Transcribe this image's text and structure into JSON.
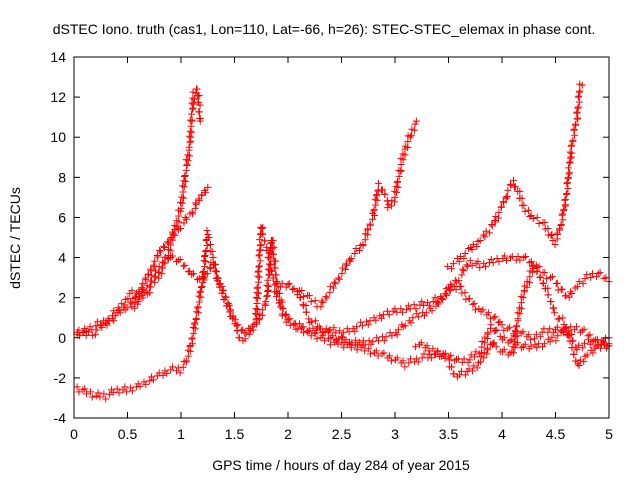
{
  "chart_data": {
    "type": "scatter",
    "title": "dSTEC Iono. truth (cas1, Lon=110, Lat=-66, h=26): STEC-STEC_elemax in phase cont.",
    "xlabel": "GPS time / hours of day 284 of year 2015",
    "ylabel": "dSTEC  / TECUs",
    "xlim": [
      0,
      5
    ],
    "ylim": [
      -4,
      14
    ],
    "xticks": [
      0,
      0.5,
      1,
      1.5,
      2,
      2.5,
      3,
      3.5,
      4,
      4.5,
      5
    ],
    "xtick_labels": [
      "0",
      "0.5",
      "1",
      "1.5",
      "2",
      "2.5",
      "3",
      "3.5",
      "4",
      "4.5",
      "5"
    ],
    "yticks": [
      -4,
      -2,
      0,
      2,
      4,
      6,
      8,
      10,
      12,
      14
    ],
    "ytick_labels": [
      "-4",
      "-2",
      "0",
      "2",
      "4",
      "6",
      "8",
      "10",
      "12",
      "14"
    ],
    "grid": false,
    "marker": "+",
    "marker_color": "#ff0000",
    "series": [
      {
        "points": [
          [
            0.0,
            0.1
          ],
          [
            0.15,
            0.5
          ],
          [
            0.3,
            0.8
          ],
          [
            0.45,
            1.6
          ],
          [
            0.5,
            2.0
          ],
          [
            0.55,
            2.2
          ],
          [
            0.6,
            1.8
          ],
          [
            0.7,
            2.4
          ],
          [
            0.8,
            3.2
          ],
          [
            0.88,
            4.2
          ],
          [
            0.95,
            5.5
          ],
          [
            1.0,
            6.5
          ],
          [
            1.05,
            8.5
          ],
          [
            1.08,
            9.5
          ],
          [
            1.1,
            11.0
          ],
          [
            1.12,
            12.2
          ],
          [
            1.15,
            12.5
          ],
          [
            1.17,
            11.5
          ],
          [
            1.18,
            10.8
          ]
        ]
      },
      {
        "points": [
          [
            0.0,
            0.1
          ],
          [
            0.2,
            0.3
          ],
          [
            0.35,
            0.9
          ],
          [
            0.5,
            1.6
          ],
          [
            0.6,
            2.2
          ],
          [
            0.7,
            3.2
          ],
          [
            0.8,
            4.2
          ],
          [
            0.9,
            5.0
          ],
          [
            1.0,
            5.6
          ],
          [
            1.1,
            6.2
          ],
          [
            1.2,
            7.2
          ],
          [
            1.25,
            7.5
          ]
        ]
      },
      {
        "points": [
          [
            0.55,
            1.4
          ],
          [
            0.6,
            1.9
          ],
          [
            0.7,
            2.7
          ],
          [
            0.8,
            3.5
          ],
          [
            0.9,
            4.1
          ],
          [
            1.0,
            3.8
          ],
          [
            1.1,
            3.2
          ],
          [
            1.2,
            2.8
          ],
          [
            1.25,
            3.2
          ],
          [
            1.3,
            3.8
          ],
          [
            1.35,
            2.8
          ],
          [
            1.4,
            2.0
          ],
          [
            1.5,
            0.8
          ],
          [
            1.6,
            0.3
          ],
          [
            1.7,
            0.6
          ],
          [
            1.8,
            1.8
          ],
          [
            1.85,
            5.0
          ],
          [
            1.9,
            2.5
          ],
          [
            1.95,
            1.2
          ],
          [
            2.0,
            0.8
          ],
          [
            2.1,
            0.5
          ],
          [
            2.2,
            0.2
          ],
          [
            2.3,
            0.0
          ],
          [
            2.4,
            -0.2
          ],
          [
            2.5,
            -0.3
          ],
          [
            2.6,
            -0.4
          ],
          [
            2.7,
            -0.5
          ],
          [
            2.8,
            -0.7
          ],
          [
            2.9,
            -0.9
          ],
          [
            3.0,
            -1.1
          ],
          [
            3.1,
            -1.3
          ],
          [
            3.2,
            -1.1
          ],
          [
            3.3,
            -0.9
          ],
          [
            3.4,
            -0.8
          ],
          [
            3.5,
            -0.9
          ],
          [
            3.6,
            -1.2
          ],
          [
            3.7,
            -1.1
          ],
          [
            3.8,
            -0.6
          ],
          [
            3.9,
            0.6
          ],
          [
            4.0,
            0.0
          ],
          [
            4.1,
            -0.2
          ],
          [
            4.2,
            -0.4
          ],
          [
            4.3,
            -0.5
          ],
          [
            4.4,
            -0.3
          ],
          [
            4.5,
            0.0
          ],
          [
            4.6,
            0.4
          ],
          [
            4.7,
            -0.5
          ],
          [
            4.8,
            -0.2
          ],
          [
            4.9,
            -0.3
          ],
          [
            5.0,
            0.0
          ]
        ]
      },
      {
        "points": [
          [
            0.0,
            -2.5
          ],
          [
            0.1,
            -2.7
          ],
          [
            0.2,
            -2.9
          ],
          [
            0.3,
            -2.9
          ],
          [
            0.4,
            -2.6
          ],
          [
            0.5,
            -2.6
          ],
          [
            0.6,
            -2.4
          ],
          [
            0.7,
            -2.1
          ],
          [
            0.8,
            -1.9
          ],
          [
            0.9,
            -1.6
          ],
          [
            1.0,
            -1.6
          ],
          [
            1.05,
            -1.2
          ],
          [
            1.1,
            -0.2
          ],
          [
            1.15,
            1.2
          ],
          [
            1.2,
            2.8
          ],
          [
            1.25,
            5.2
          ],
          [
            1.3,
            4.0
          ],
          [
            1.35,
            2.8
          ],
          [
            1.4,
            2.3
          ],
          [
            1.5,
            0.8
          ],
          [
            1.55,
            -0.1
          ],
          [
            1.6,
            0.0
          ],
          [
            1.7,
            0.8
          ],
          [
            1.75,
            5.5
          ],
          [
            1.8,
            4.5
          ],
          [
            1.9,
            2.0
          ],
          [
            2.0,
            1.0
          ],
          [
            2.1,
            0.6
          ],
          [
            2.2,
            0.4
          ],
          [
            2.3,
            0.3
          ],
          [
            2.4,
            0.4
          ],
          [
            2.5,
            0.2
          ],
          [
            2.6,
            0.4
          ],
          [
            2.7,
            0.7
          ],
          [
            2.8,
            0.9
          ],
          [
            2.9,
            1.2
          ],
          [
            3.0,
            1.3
          ],
          [
            3.1,
            1.4
          ],
          [
            3.2,
            1.6
          ],
          [
            3.3,
            1.7
          ],
          [
            3.4,
            1.9
          ],
          [
            3.5,
            2.4
          ],
          [
            3.6,
            2.6
          ],
          [
            3.7,
            1.8
          ],
          [
            3.8,
            1.3
          ],
          [
            3.9,
            1.1
          ],
          [
            4.0,
            0.6
          ],
          [
            4.1,
            0.3
          ],
          [
            4.2,
            0.2
          ],
          [
            4.3,
            0.0
          ],
          [
            4.4,
            0.3
          ],
          [
            4.5,
            0.4
          ],
          [
            4.6,
            0.3
          ],
          [
            4.7,
            0.5
          ],
          [
            4.8,
            0.2
          ],
          [
            4.9,
            -0.2
          ],
          [
            5.0,
            -0.3
          ]
        ]
      },
      {
        "points": [
          [
            1.9,
            2.6
          ],
          [
            2.0,
            2.7
          ],
          [
            2.1,
            2.2
          ],
          [
            2.15,
            1.6
          ],
          [
            2.2,
            0.9
          ],
          [
            2.3,
            0.5
          ],
          [
            2.4,
            0.1
          ],
          [
            2.5,
            -0.1
          ],
          [
            2.6,
            -0.2
          ],
          [
            2.7,
            -0.3
          ],
          [
            2.8,
            -0.2
          ],
          [
            2.9,
            0.0
          ],
          [
            3.0,
            0.2
          ],
          [
            3.1,
            0.7
          ],
          [
            3.2,
            1.1
          ],
          [
            3.3,
            1.3
          ],
          [
            3.4,
            1.6
          ],
          [
            3.5,
            2.4
          ],
          [
            3.6,
            3.0
          ],
          [
            3.7,
            3.8
          ],
          [
            3.8,
            3.6
          ],
          [
            3.9,
            3.8
          ],
          [
            4.0,
            4.0
          ],
          [
            4.1,
            3.9
          ],
          [
            4.2,
            4.0
          ],
          [
            4.3,
            3.6
          ],
          [
            4.4,
            3.2
          ],
          [
            4.5,
            2.8
          ],
          [
            4.6,
            2.0
          ],
          [
            4.7,
            2.6
          ],
          [
            4.8,
            3.0
          ],
          [
            4.9,
            3.2
          ],
          [
            5.0,
            2.8
          ]
        ]
      },
      {
        "points": [
          [
            2.1,
            2.4
          ],
          [
            2.2,
            2.0
          ],
          [
            2.3,
            1.6
          ],
          [
            2.4,
            2.4
          ],
          [
            2.5,
            3.2
          ],
          [
            2.6,
            4.1
          ],
          [
            2.7,
            4.6
          ],
          [
            2.8,
            6.2
          ],
          [
            2.85,
            7.6
          ],
          [
            2.9,
            7.2
          ],
          [
            2.95,
            6.5
          ],
          [
            3.0,
            7.0
          ],
          [
            3.05,
            8.5
          ],
          [
            3.1,
            9.5
          ],
          [
            3.15,
            10.2
          ],
          [
            3.2,
            10.8
          ]
        ]
      },
      {
        "points": [
          [
            3.5,
            3.5
          ],
          [
            3.6,
            3.9
          ],
          [
            3.7,
            4.4
          ],
          [
            3.8,
            4.9
          ],
          [
            3.9,
            5.5
          ],
          [
            4.0,
            6.5
          ],
          [
            4.05,
            7.2
          ],
          [
            4.1,
            7.8
          ],
          [
            4.15,
            7.4
          ],
          [
            4.2,
            6.5
          ],
          [
            4.3,
            6.0
          ],
          [
            4.4,
            5.6
          ],
          [
            4.45,
            5.1
          ],
          [
            4.5,
            4.8
          ],
          [
            4.55,
            5.6
          ],
          [
            4.6,
            7.0
          ],
          [
            4.65,
            9.5
          ],
          [
            4.7,
            11.0
          ],
          [
            4.73,
            12.5
          ],
          [
            4.75,
            12.6
          ]
        ]
      },
      {
        "points": [
          [
            3.2,
            -0.3
          ],
          [
            3.4,
            -0.7
          ],
          [
            3.5,
            -1.0
          ],
          [
            3.55,
            -1.9
          ],
          [
            3.6,
            -1.8
          ],
          [
            3.7,
            -1.7
          ],
          [
            3.8,
            -1.2
          ],
          [
            3.9,
            -0.2
          ],
          [
            3.95,
            -0.5
          ],
          [
            4.0,
            -0.6
          ],
          [
            4.1,
            -0.8
          ],
          [
            4.15,
            1.0
          ],
          [
            4.2,
            2.2
          ],
          [
            4.3,
            3.6
          ],
          [
            4.4,
            2.6
          ],
          [
            4.5,
            1.2
          ],
          [
            4.6,
            0.6
          ],
          [
            4.7,
            -1.4
          ],
          [
            4.8,
            -0.8
          ],
          [
            4.9,
            -0.5
          ],
          [
            5.0,
            -0.4
          ]
        ]
      }
    ]
  }
}
